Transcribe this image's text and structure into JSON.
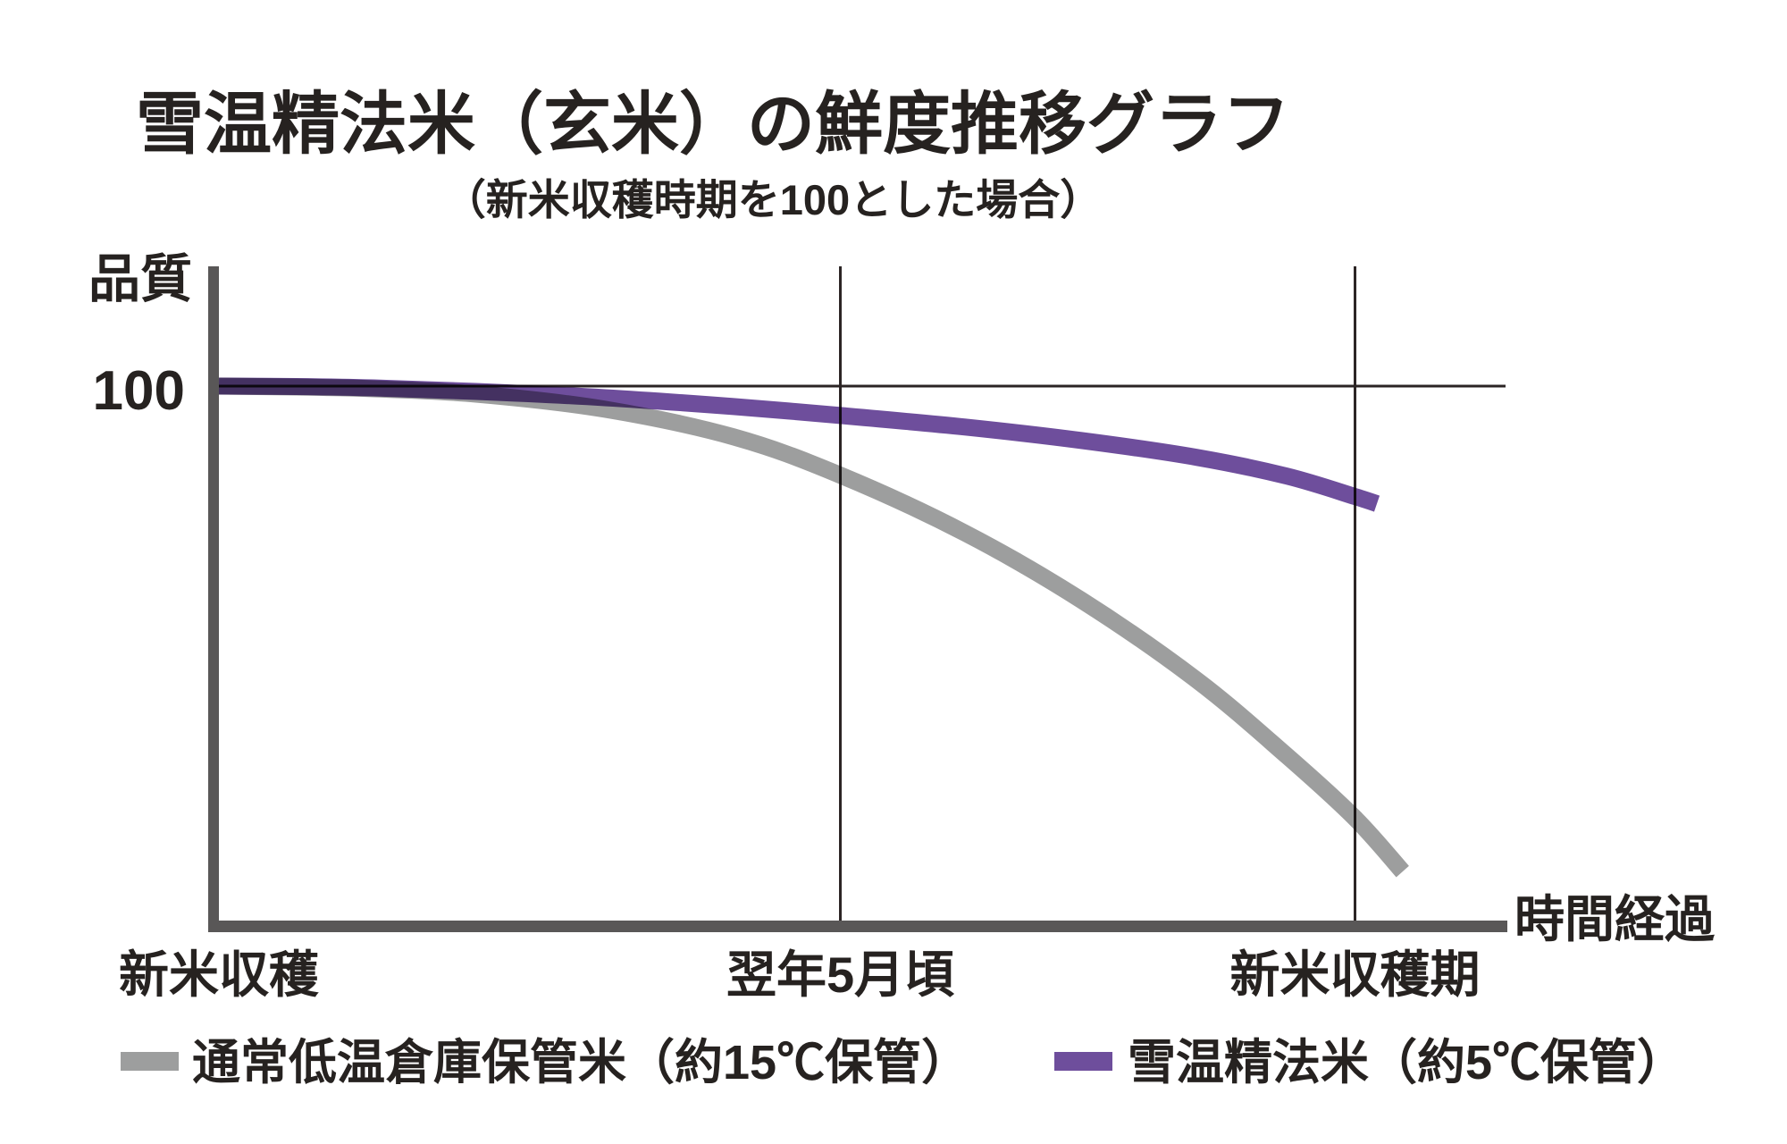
{
  "title": "雪温精法米（玄米）の鮮度推移グラフ",
  "subtitle": "（新米収穫時期を100とした場合）",
  "axes": {
    "y_label": "品質",
    "y_ref_label": "100",
    "x_label": "時間経過",
    "x_tick_labels": [
      "新米収穫",
      "翌年5月頃",
      "新米収穫期"
    ]
  },
  "legend": [
    {
      "label": "通常低温倉庫保管米（約15℃保管）",
      "color": "#9d9e9e"
    },
    {
      "label": "雪温精法米（約5℃保管）",
      "color": "#6e4e9c"
    }
  ],
  "colors": {
    "axis_bar": "#595757",
    "grid_line": "#2b2424",
    "text": "#262220",
    "normal_storage_line": "#9d9e9e",
    "snow_method_line": "#6e4e9c"
  },
  "chart_data": {
    "type": "line",
    "title": "雪温精法米（玄米）の鮮度推移グラフ",
    "subtitle": "（新米収穫時期を100とした場合）",
    "xlabel": "時間経過",
    "ylabel": "品質",
    "reference_line": 100,
    "ylim": [
      40,
      106
    ],
    "grid": "two vertical marker lines + one horizontal reference line at 100",
    "legend_position": "bottom",
    "x_tick_positions": [
      0,
      0.483,
      0.883
    ],
    "x_tick_labels": [
      "新米収穫",
      "翌年5月頃",
      "新米収穫期"
    ],
    "series": [
      {
        "name": "通常低温倉庫保管米（約15℃保管）",
        "color": "#9d9e9e",
        "points": [
          [
            0,
            100
          ],
          [
            0.06,
            99.9
          ],
          [
            0.12,
            99.7
          ],
          [
            0.2,
            99.1
          ],
          [
            0.3,
            97.4
          ],
          [
            0.4,
            94.3
          ],
          [
            0.483,
            90
          ],
          [
            0.58,
            83.5
          ],
          [
            0.67,
            76
          ],
          [
            0.76,
            67
          ],
          [
            0.83,
            58.5
          ],
          [
            0.883,
            51.5
          ],
          [
            0.92,
            45.5
          ]
        ]
      },
      {
        "name": "雪温精法米（約5℃保管）",
        "color": "#6e4e9c",
        "points": [
          [
            0,
            100
          ],
          [
            0.06,
            99.95
          ],
          [
            0.12,
            99.8
          ],
          [
            0.2,
            99.4
          ],
          [
            0.3,
            98.7
          ],
          [
            0.4,
            97.7
          ],
          [
            0.483,
            96.7
          ],
          [
            0.58,
            95.4
          ],
          [
            0.67,
            93.9
          ],
          [
            0.76,
            92
          ],
          [
            0.83,
            89.9
          ],
          [
            0.883,
            87.6
          ],
          [
            0.9,
            86.8
          ]
        ]
      }
    ]
  }
}
